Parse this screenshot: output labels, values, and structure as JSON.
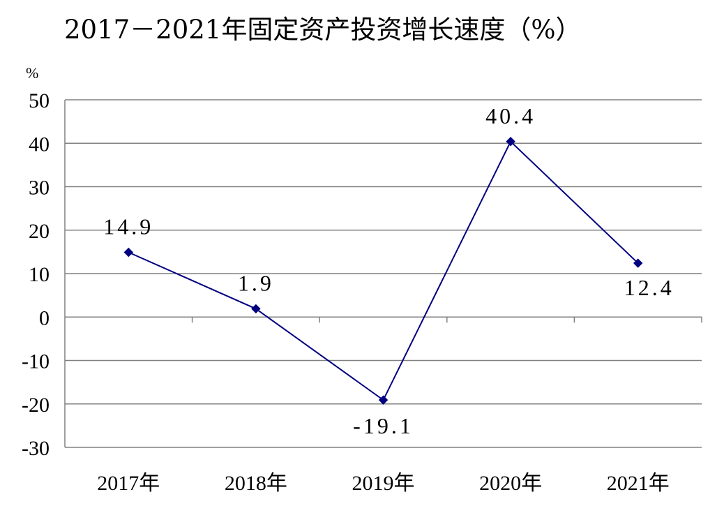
{
  "chart_data": {
    "type": "line",
    "title": "2017－2021年固定资产投资增长速度（%）",
    "y_unit": "%",
    "categories": [
      "2017年",
      "2018年",
      "2019年",
      "2020年",
      "2021年"
    ],
    "series": [
      {
        "values": [
          14.9,
          1.9,
          -19.1,
          40.4,
          12.4
        ],
        "color": "#000080"
      }
    ],
    "data_labels": [
      "14.9",
      "1.9",
      "-19.1",
      "40.4",
      "12.4"
    ],
    "ylim": [
      -30,
      50
    ],
    "yticks": [
      50,
      40,
      30,
      20,
      10,
      0,
      -10,
      -20,
      -30
    ],
    "grid": true,
    "gridline_color": "#808080"
  }
}
